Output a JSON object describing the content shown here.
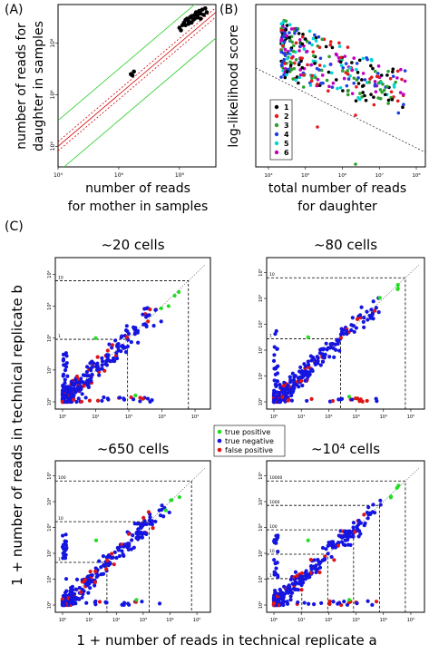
{
  "colors": {
    "reference_line": "#d40000",
    "reference_band": "#22cc22",
    "true_positive": "#22dd22",
    "true_negative": "#1515e0",
    "false_positive": "#dd1515",
    "groups": [
      "#000000",
      "#e41a1c",
      "#2ca02c",
      "#1f3fdf",
      "#00d5d5",
      "#c000c0"
    ]
  },
  "chart_data": [
    {
      "panel": "(A)",
      "type": "scatter",
      "scale": "log-log",
      "xlabel": "number of reads\nfor mother in samples",
      "ylabel": "number of reads for\ndaughter in samples",
      "xticks": [
        "10⁴",
        "10⁶",
        "10⁸"
      ],
      "yticks": [
        "10⁴",
        "10⁶",
        "10⁸"
      ],
      "xlim_log10": [
        4,
        9.2
      ],
      "ylim_log10": [
        3.2,
        9.5
      ],
      "points_log10": [
        [
          6.4,
          6.8
        ],
        [
          6.5,
          6.9
        ],
        [
          6.45,
          6.75
        ],
        [
          8.0,
          8.6
        ],
        [
          8.05,
          8.5
        ],
        [
          8.1,
          8.7
        ],
        [
          8.15,
          8.8
        ],
        [
          8.2,
          8.9
        ],
        [
          8.25,
          8.95
        ],
        [
          8.3,
          8.85
        ],
        [
          8.35,
          9.0
        ],
        [
          8.4,
          9.05
        ],
        [
          8.45,
          8.9
        ],
        [
          8.5,
          9.1
        ],
        [
          8.55,
          9.2
        ],
        [
          8.6,
          9.0
        ],
        [
          8.65,
          9.25
        ],
        [
          8.7,
          9.15
        ],
        [
          8.75,
          9.3
        ],
        [
          8.8,
          9.1
        ],
        [
          8.85,
          9.35
        ],
        [
          8.9,
          9.2
        ],
        [
          8.2,
          8.7
        ],
        [
          8.4,
          8.8
        ],
        [
          8.6,
          9.1
        ],
        [
          8.7,
          8.95
        ],
        [
          8.3,
          8.75
        ],
        [
          8.5,
          8.95
        ]
      ]
    },
    {
      "panel": "(B)",
      "type": "scatter",
      "scale": "log-x",
      "xlabel": "total number of reads\nfor daughter",
      "ylabel": "log-likelihood score",
      "xticks": [
        "10⁴",
        "10⁵",
        "10⁶",
        "10⁷",
        "10⁸"
      ],
      "xlim_log10": [
        4,
        8.3
      ],
      "ylim": [
        -11,
        0
      ],
      "legend": [
        "1",
        "2",
        "3",
        "4",
        "5",
        "6"
      ],
      "legend_position": "bottom-left"
    },
    {
      "panel": "(C)",
      "type": "scatter",
      "scale": "log-log",
      "xlabel": "1 + number of reads in technical replicate a",
      "ylabel": "1 + number of reads in technical replicate b",
      "legend": [
        "true positive",
        "true negative",
        "false positive"
      ],
      "subplots": [
        {
          "title": "~20 cells",
          "ticks": [
            "10⁰",
            "10¹",
            "10²",
            "10³",
            "10⁴"
          ],
          "max_log10": 4,
          "thresholds": [
            "10",
            "1"
          ]
        },
        {
          "title": "~80 cells",
          "ticks": [
            "10⁰",
            "10¹",
            "10²",
            "10³",
            "10⁴",
            "10⁵"
          ],
          "max_log10": 5,
          "thresholds": [
            "10",
            "1"
          ]
        },
        {
          "title": "~650 cells",
          "ticks": [
            "10⁰",
            "10¹",
            "10²",
            "10³",
            "10⁴",
            "10⁵"
          ],
          "max_log10": 5,
          "thresholds": [
            "100",
            "10",
            "1"
          ]
        },
        {
          "title": "~10⁴ cells",
          "ticks": [
            "10⁰",
            "10¹",
            "10²",
            "10³",
            "10⁴",
            "10⁵"
          ],
          "max_log10": 5,
          "thresholds": [
            "10000",
            "1000",
            "100",
            "10",
            "1"
          ]
        }
      ]
    }
  ],
  "labels": {
    "panel_a": "(A)",
    "panel_b": "(B)",
    "panel_c": "(C)"
  }
}
